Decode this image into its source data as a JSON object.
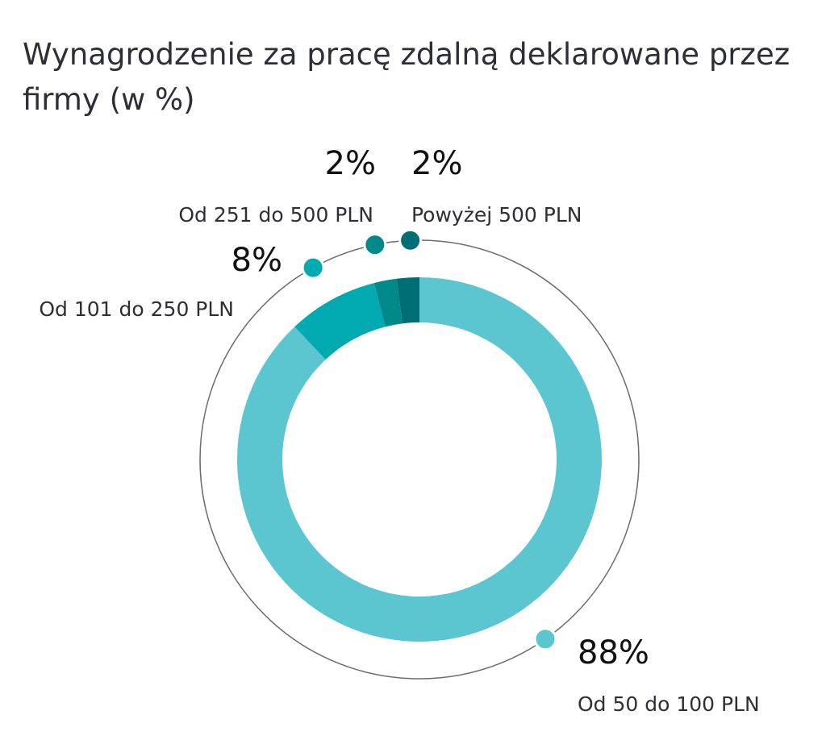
{
  "chart_data": {
    "type": "donut",
    "title": "Wynagrodzenie za pracę zdalną deklarowane przez firmy (w %)",
    "categories": [
      "Od 50 do 100 PLN",
      "Od 101 do 250 PLN",
      "Od 251 do 500 PLN",
      "Powyżej 500 PLN"
    ],
    "values": [
      88,
      8,
      2,
      2
    ],
    "value_labels": [
      "88%",
      "8%",
      "2%",
      "2%"
    ],
    "colors": [
      "#5bc6d0",
      "#00aab0",
      "#00898a",
      "#006f75"
    ]
  }
}
